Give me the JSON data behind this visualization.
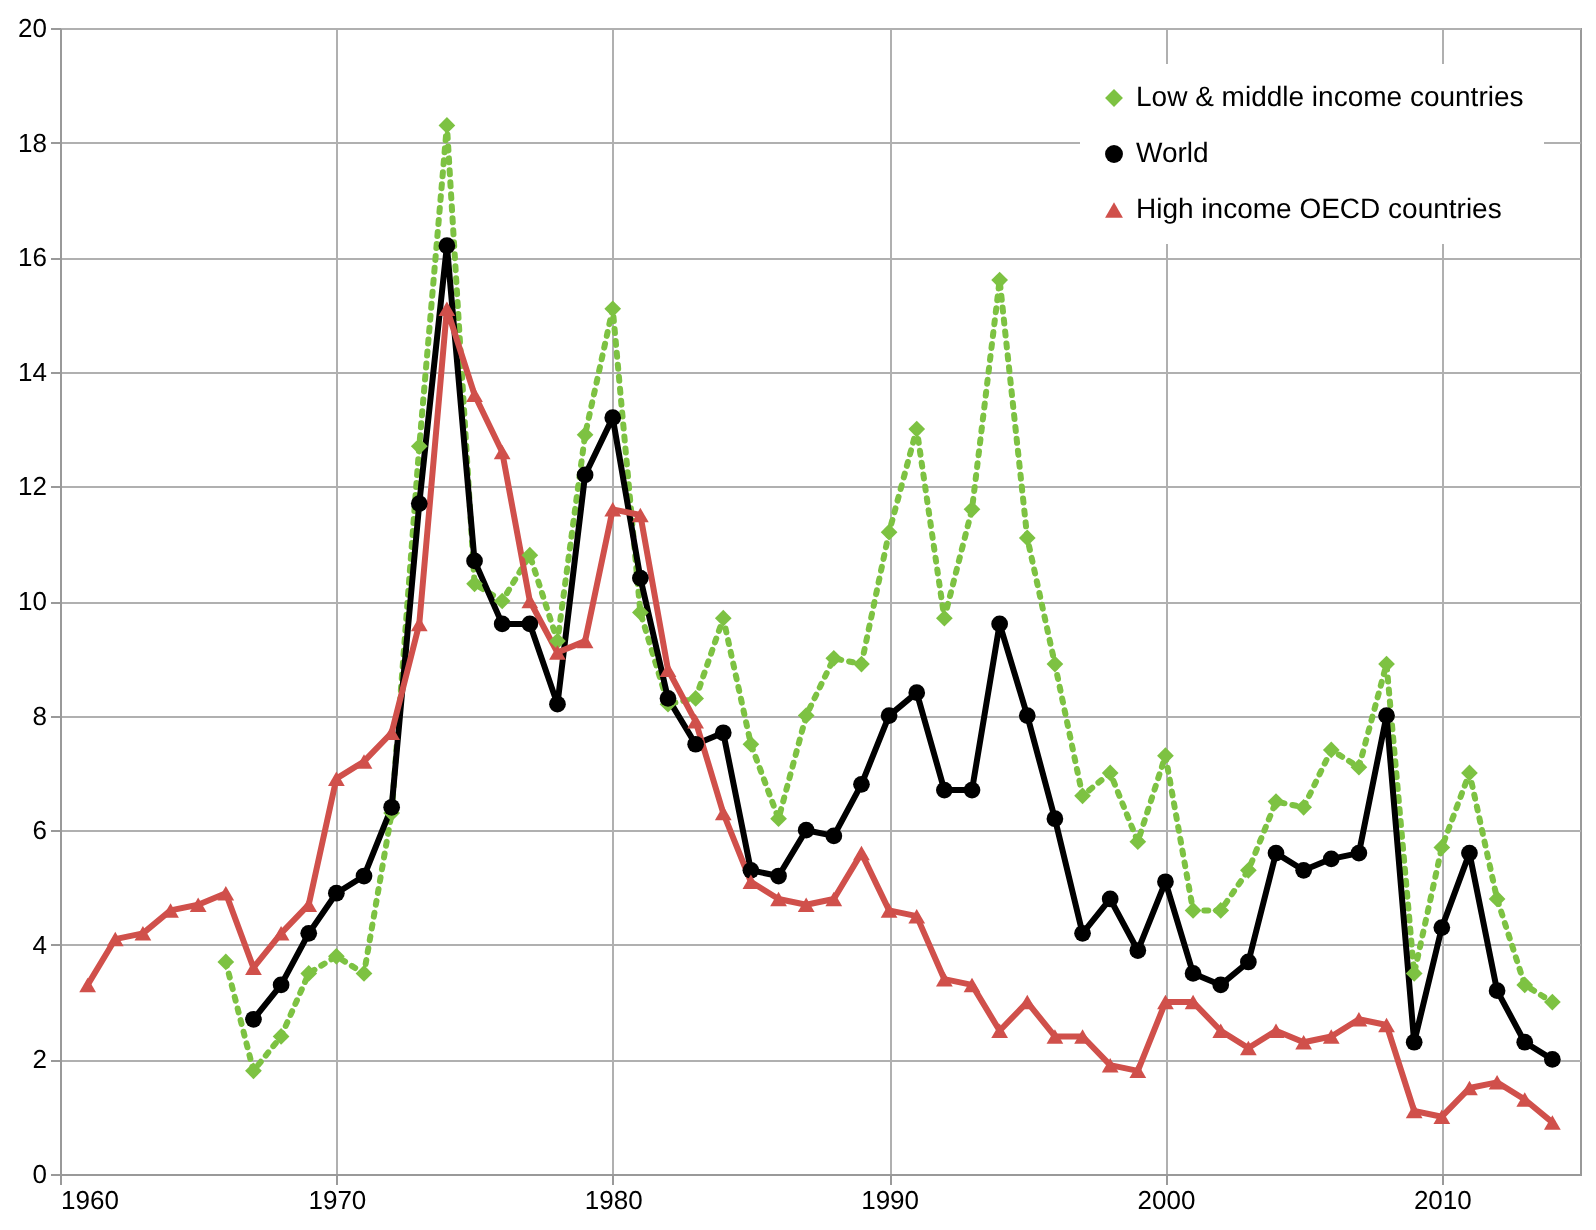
{
  "chart_data": {
    "type": "line",
    "xlim": [
      1960,
      2015
    ],
    "xticks": [
      1960,
      1970,
      1980,
      1990,
      2000,
      2010
    ],
    "ylim": [
      0,
      20
    ],
    "yticks": [
      0,
      2,
      4,
      6,
      8,
      10,
      12,
      14,
      16,
      18,
      20
    ],
    "grid": true,
    "legend": "top right",
    "series": [
      {
        "name": "Low & middle income countries",
        "color": "#7dc242",
        "marker": "diamond",
        "line_style": "dotted",
        "x": [
          1966,
          1967,
          1968,
          1969,
          1970,
          1971,
          1972,
          1973,
          1974,
          1975,
          1976,
          1977,
          1978,
          1979,
          1980,
          1981,
          1982,
          1983,
          1984,
          1985,
          1986,
          1987,
          1988,
          1989,
          1990,
          1991,
          1992,
          1993,
          1994,
          1995,
          1996,
          1997,
          1998,
          1999,
          2000,
          2001,
          2002,
          2003,
          2004,
          2005,
          2006,
          2007,
          2008,
          2009,
          2010,
          2011,
          2012,
          2013,
          2014
        ],
        "values": [
          3.7,
          1.8,
          2.4,
          3.5,
          3.8,
          3.5,
          6.3,
          12.7,
          18.3,
          10.3,
          10.0,
          10.8,
          9.3,
          12.9,
          15.1,
          9.8,
          8.2,
          8.3,
          9.7,
          7.5,
          6.2,
          8.0,
          9.0,
          8.9,
          11.2,
          13.0,
          9.7,
          11.6,
          15.6,
          11.1,
          8.9,
          6.6,
          7.0,
          5.8,
          7.3,
          4.6,
          4.6,
          5.3,
          6.5,
          6.4,
          7.4,
          7.1,
          8.9,
          3.5,
          5.7,
          7.0,
          4.8,
          3.3,
          3.0
        ]
      },
      {
        "name": "World",
        "color": "#000000",
        "marker": "circle",
        "line_style": "solid",
        "x": [
          1967,
          1968,
          1969,
          1970,
          1971,
          1972,
          1973,
          1974,
          1975,
          1976,
          1977,
          1978,
          1979,
          1980,
          1981,
          1982,
          1983,
          1984,
          1985,
          1986,
          1987,
          1988,
          1989,
          1990,
          1991,
          1992,
          1993,
          1994,
          1995,
          1996,
          1997,
          1998,
          1999,
          2000,
          2001,
          2002,
          2003,
          2004,
          2005,
          2006,
          2007,
          2008,
          2009,
          2010,
          2011,
          2012,
          2013,
          2014
        ],
        "values": [
          2.7,
          3.3,
          4.2,
          4.9,
          5.2,
          6.4,
          11.7,
          16.2,
          10.7,
          9.6,
          9.6,
          8.2,
          12.2,
          13.2,
          10.4,
          8.3,
          7.5,
          7.7,
          5.3,
          5.2,
          6.0,
          5.9,
          6.8,
          8.0,
          8.4,
          6.7,
          6.7,
          9.6,
          8.0,
          6.2,
          4.2,
          4.8,
          3.9,
          5.1,
          3.5,
          3.3,
          3.7,
          5.6,
          5.3,
          5.5,
          5.6,
          8.0,
          2.3,
          4.3,
          5.6,
          3.2,
          2.3,
          2.0
        ]
      },
      {
        "name": "High income OECD countries",
        "color": "#d0504b",
        "marker": "triangle",
        "line_style": "solid",
        "x": [
          1961,
          1962,
          1963,
          1964,
          1965,
          1966,
          1967,
          1968,
          1969,
          1970,
          1971,
          1972,
          1973,
          1974,
          1975,
          1976,
          1977,
          1978,
          1979,
          1980,
          1981,
          1982,
          1983,
          1984,
          1985,
          1986,
          1987,
          1988,
          1989,
          1990,
          1991,
          1992,
          1993,
          1994,
          1995,
          1996,
          1997,
          1998,
          1999,
          2000,
          2001,
          2002,
          2003,
          2004,
          2005,
          2006,
          2007,
          2008,
          2009,
          2010,
          2011,
          2012,
          2013,
          2014
        ],
        "values": [
          3.3,
          4.1,
          4.2,
          4.6,
          4.7,
          4.9,
          3.6,
          4.2,
          4.7,
          6.9,
          7.2,
          7.7,
          9.6,
          15.1,
          13.6,
          12.6,
          10.0,
          9.1,
          9.3,
          11.6,
          11.5,
          8.8,
          7.9,
          6.3,
          5.1,
          4.8,
          4.7,
          4.8,
          5.6,
          4.6,
          4.5,
          3.4,
          3.3,
          2.5,
          3.0,
          2.4,
          2.4,
          1.9,
          1.8,
          3.0,
          3.0,
          2.5,
          2.2,
          2.5,
          2.3,
          2.4,
          2.7,
          2.6,
          1.1,
          1.0,
          1.5,
          1.6,
          1.3,
          0.9
        ]
      }
    ]
  }
}
